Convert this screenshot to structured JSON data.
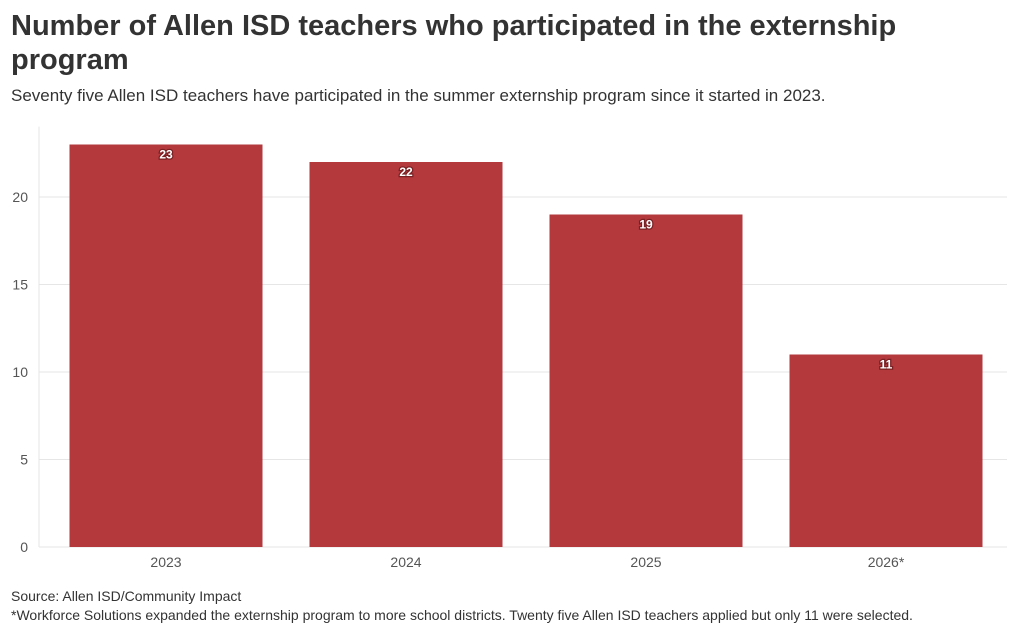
{
  "title": "Number of Allen ISD teachers who participated in the externship program",
  "subtitle": "Seventy five Allen ISD teachers have participated in the summer externship program since it started in 2023.",
  "source": "Source: Allen ISD/Community Impact",
  "note": "*Workforce Solutions expanded the externship program to more school districts. Twenty five Allen ISD teachers applied but only 11 were selected.",
  "colors": {
    "bar": "#b3393d",
    "grid": "#e6e6e6",
    "text": "#333333"
  },
  "chart_data": {
    "type": "bar",
    "categories": [
      "2023",
      "2024",
      "2025",
      "2026*"
    ],
    "values": [
      23,
      22,
      19,
      11
    ],
    "data_labels": [
      "23",
      "22",
      "19",
      "11"
    ],
    "xlabel": "",
    "ylabel": "",
    "ylim": [
      0,
      23
    ],
    "yticks": [
      0,
      5,
      10,
      15,
      20
    ],
    "grid": true
  }
}
